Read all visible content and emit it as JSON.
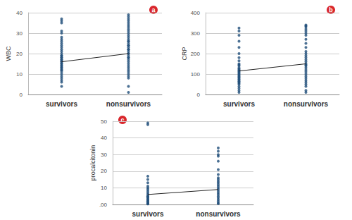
{
  "chart_data": [
    {
      "type": "scatter",
      "annotation": "a",
      "ylabel": "WBC",
      "categories": [
        "survivors",
        "nonsurvivors"
      ],
      "points": [
        [
          37,
          36,
          35,
          31,
          30,
          28,
          27,
          26,
          25,
          24,
          23,
          22,
          21,
          20,
          19,
          19,
          18,
          18,
          17,
          17,
          16,
          16,
          15,
          15,
          14,
          14,
          13,
          13,
          12,
          12,
          11,
          10,
          9,
          8,
          7,
          6,
          4
        ],
        [
          39,
          38,
          37,
          36,
          35,
          34,
          33,
          32,
          31,
          30,
          29,
          28,
          27,
          26,
          26,
          25,
          24,
          24,
          23,
          22,
          22,
          21,
          20,
          20,
          19,
          18,
          18,
          17,
          16,
          15,
          14,
          13,
          12,
          11,
          10,
          9,
          8,
          4,
          1
        ]
      ],
      "means": [
        16,
        20
      ],
      "color": "#1f4e79",
      "ylim": [
        0,
        40
      ],
      "yticks": [
        0,
        10,
        20,
        30,
        40
      ],
      "grid": true
    },
    {
      "type": "scatter",
      "annotation": "b",
      "ylabel": "CRP",
      "categories": [
        "survivors",
        "nonsurvivors"
      ],
      "points": [
        [
          325,
          310,
          290,
          260,
          230,
          200,
          180,
          165,
          150,
          145,
          140,
          130,
          125,
          120,
          115,
          110,
          105,
          100,
          95,
          90,
          85,
          80,
          75,
          70,
          65,
          60,
          55,
          50,
          40,
          30,
          20,
          10
        ],
        [
          340,
          335,
          330,
          320,
          310,
          300,
          290,
          270,
          250,
          230,
          210,
          200,
          190,
          180,
          170,
          160,
          150,
          145,
          140,
          130,
          120,
          110,
          100,
          90,
          80,
          70,
          60,
          50,
          40,
          20,
          10
        ]
      ],
      "means": [
        115,
        150
      ],
      "color": "#1f4e79",
      "ylim": [
        0,
        400
      ],
      "yticks": [
        0,
        100,
        200,
        300,
        400
      ],
      "grid": true
    },
    {
      "type": "scatter",
      "annotation": "c",
      "ylabel": "procalcitonin",
      "categories": [
        "survivors",
        "nonsurvivors"
      ],
      "points": [
        [
          49,
          48,
          17,
          15,
          13,
          11,
          10,
          9,
          8,
          7,
          6,
          5,
          5,
          4,
          4,
          3,
          3,
          2,
          2,
          1,
          1,
          0.5,
          0.3
        ],
        [
          34,
          32,
          30,
          29,
          26,
          21,
          18,
          16,
          15,
          14,
          13,
          12,
          11,
          10,
          9,
          8,
          7,
          6,
          5,
          4,
          3,
          2,
          1,
          0.5
        ]
      ],
      "means": [
        6,
        9
      ],
      "color": "#1f4e79",
      "ylim": [
        0,
        50
      ],
      "yticks": [
        {
          "value": 0,
          "label": ".00"
        },
        10,
        20,
        30,
        40,
        50
      ],
      "grid": true
    }
  ]
}
